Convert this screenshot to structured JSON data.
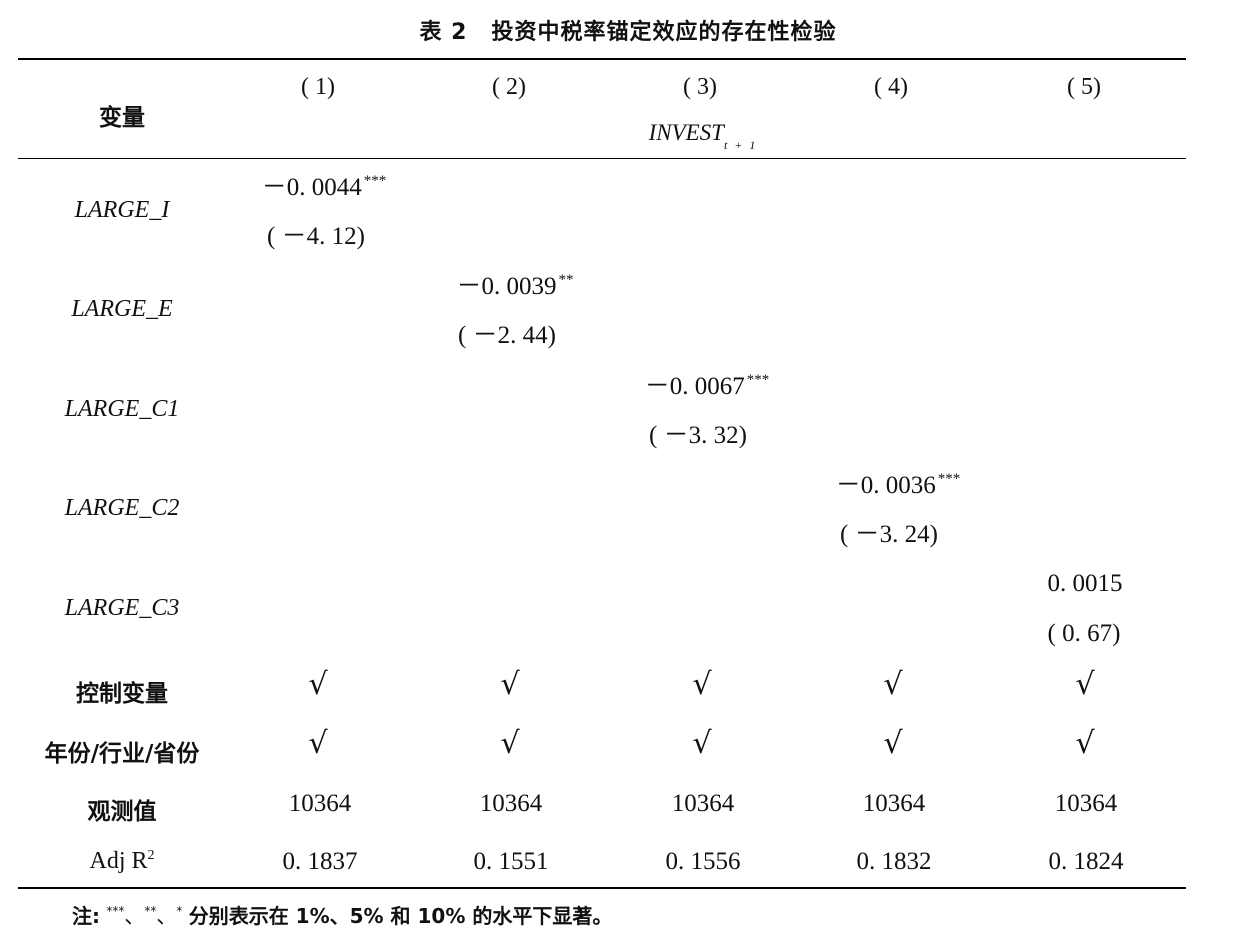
{
  "title": {
    "number": "表 2",
    "text": "投资中税率锚定效应的存在性检验"
  },
  "header": {
    "variable_label": "变量",
    "columns": [
      "( 1)",
      "( 2)",
      "( 3)",
      "( 4)",
      "( 5)"
    ],
    "dependent_var": "INVEST",
    "dependent_sub": "t + 1"
  },
  "rows": [
    {
      "label": "LARGE_I",
      "col": 0,
      "coef": "－0. 0044",
      "stars": "***",
      "t": "( －4. 12)"
    },
    {
      "label": "LARGE_E",
      "col": 1,
      "coef": "－0. 0039",
      "stars": "**",
      "t": "( －2. 44)"
    },
    {
      "label": "LARGE_C1",
      "col": 2,
      "coef": "－0. 0067",
      "stars": "***",
      "t": "( －3. 32)"
    },
    {
      "label": "LARGE_C2",
      "col": 3,
      "coef": "－0. 0036",
      "stars": "***",
      "t": "( －3. 24)"
    },
    {
      "label": "LARGE_C3",
      "col": 4,
      "coef": "0. 0015",
      "stars": "",
      "t": "( 0. 67)"
    }
  ],
  "controls": {
    "label": "控制变量",
    "values": [
      "√",
      "√",
      "√",
      "√",
      "√"
    ]
  },
  "fixed_effects": {
    "label": "年份/行业/省份",
    "values": [
      "√",
      "√",
      "√",
      "√",
      "√"
    ]
  },
  "observations": {
    "label": "观测值",
    "values": [
      "10364",
      "10364",
      "10364",
      "10364",
      "10364"
    ]
  },
  "adj_r2": {
    "label": "Adj R",
    "label_sup": "2",
    "values": [
      "0. 1837",
      "0. 1551",
      "0. 1556",
      "0. 1832",
      "0. 1824"
    ]
  },
  "note": {
    "prefix": "注:",
    "s3": "***",
    "s2": "**",
    "s1": "*",
    "sep": "、",
    "text": "分别表示在 1%、5% 和 10% 的水平下显著。"
  }
}
